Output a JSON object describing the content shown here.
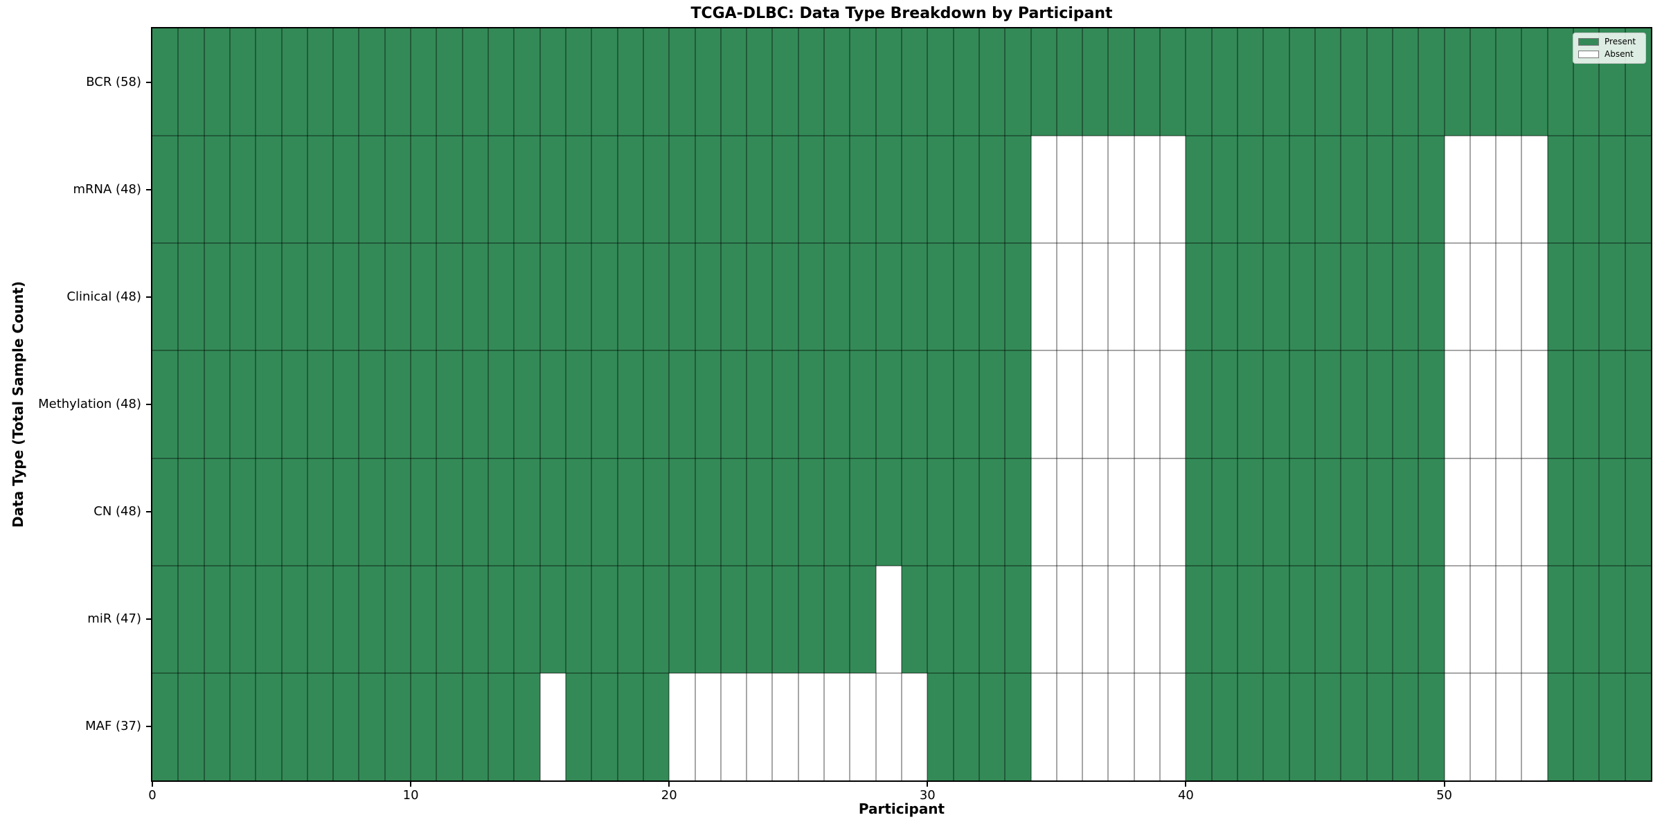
{
  "chart_data": {
    "type": "heatmap",
    "title": "TCGA-DLBC: Data Type Breakdown by Participant",
    "xlabel": "Participant",
    "ylabel": "Data Type (Total Sample Count)",
    "n_participants": 58,
    "x_range": [
      0,
      58
    ],
    "x_ticks": [
      0,
      10,
      20,
      30,
      40,
      50
    ],
    "legend": {
      "present_label": "Present",
      "absent_label": "Absent"
    },
    "colors": {
      "present": "#338a57",
      "absent": "#ffffff",
      "grid": "rgba(0,0,0,0.35)",
      "spine": "#000000"
    },
    "rows": [
      {
        "label": "BCR (58)",
        "data_type": "BCR",
        "present_count": 58,
        "absent_participants": []
      },
      {
        "label": "mRNA (48)",
        "data_type": "mRNA",
        "present_count": 48,
        "absent_participants": [
          34,
          35,
          36,
          37,
          38,
          39,
          50,
          51,
          52,
          53
        ]
      },
      {
        "label": "Clinical (48)",
        "data_type": "Clinical",
        "present_count": 48,
        "absent_participants": [
          34,
          35,
          36,
          37,
          38,
          39,
          50,
          51,
          52,
          53
        ]
      },
      {
        "label": "Methylation (48)",
        "data_type": "Methylation",
        "present_count": 48,
        "absent_participants": [
          34,
          35,
          36,
          37,
          38,
          39,
          50,
          51,
          52,
          53
        ]
      },
      {
        "label": "CN (48)",
        "data_type": "CN",
        "present_count": 48,
        "absent_participants": [
          34,
          35,
          36,
          37,
          38,
          39,
          50,
          51,
          52,
          53
        ]
      },
      {
        "label": "miR (47)",
        "data_type": "miR",
        "present_count": 47,
        "absent_participants": [
          28,
          34,
          35,
          36,
          37,
          38,
          39,
          50,
          51,
          52,
          53
        ]
      },
      {
        "label": "MAF (37)",
        "data_type": "MAF",
        "present_count": 37,
        "absent_participants": [
          15,
          20,
          21,
          22,
          23,
          24,
          25,
          26,
          27,
          28,
          29,
          34,
          35,
          36,
          37,
          38,
          39,
          50,
          51,
          52,
          53
        ]
      }
    ]
  }
}
